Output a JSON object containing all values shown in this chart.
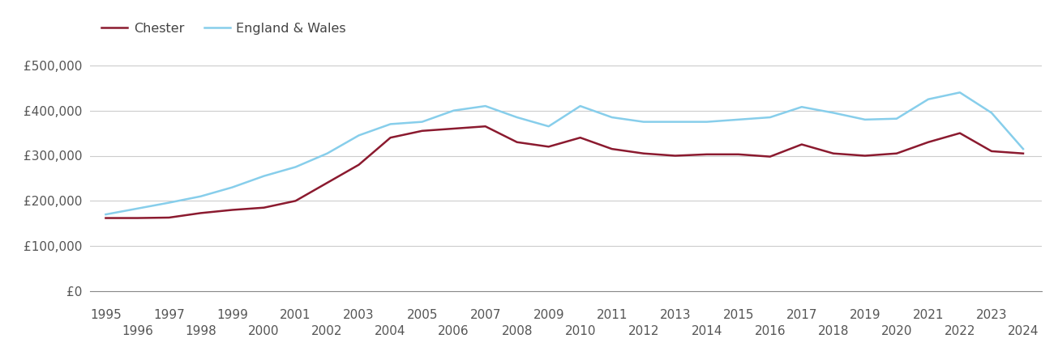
{
  "years": [
    1995,
    1996,
    1997,
    1998,
    1999,
    2000,
    2001,
    2002,
    2003,
    2004,
    2005,
    2006,
    2007,
    2008,
    2009,
    2010,
    2011,
    2012,
    2013,
    2014,
    2015,
    2016,
    2017,
    2018,
    2019,
    2020,
    2021,
    2022,
    2023,
    2024
  ],
  "chester": [
    162000,
    162000,
    163000,
    173000,
    180000,
    185000,
    200000,
    240000,
    280000,
    340000,
    355000,
    360000,
    365000,
    330000,
    320000,
    340000,
    315000,
    305000,
    300000,
    303000,
    303000,
    298000,
    325000,
    305000,
    300000,
    305000,
    330000,
    350000,
    310000,
    305000
  ],
  "england_wales": [
    170000,
    183000,
    196000,
    210000,
    230000,
    255000,
    275000,
    305000,
    345000,
    370000,
    375000,
    400000,
    410000,
    385000,
    365000,
    410000,
    385000,
    375000,
    375000,
    375000,
    380000,
    385000,
    408000,
    395000,
    380000,
    382000,
    425000,
    440000,
    395000,
    315000
  ],
  "chester_color": "#8B1A2F",
  "ew_color": "#87CEEB",
  "line_width": 1.8,
  "ylim": [
    0,
    540000
  ],
  "yticks": [
    0,
    100000,
    200000,
    300000,
    400000,
    500000
  ],
  "ytick_labels": [
    "£0",
    "£100,000",
    "£200,000",
    "£300,000",
    "£400,000",
    "£500,000"
  ],
  "bg_color": "#ffffff",
  "grid_color": "#cccccc",
  "legend_chester": "Chester",
  "legend_ew": "England & Wales",
  "tick_fontsize": 11,
  "legend_fontsize": 11.5
}
